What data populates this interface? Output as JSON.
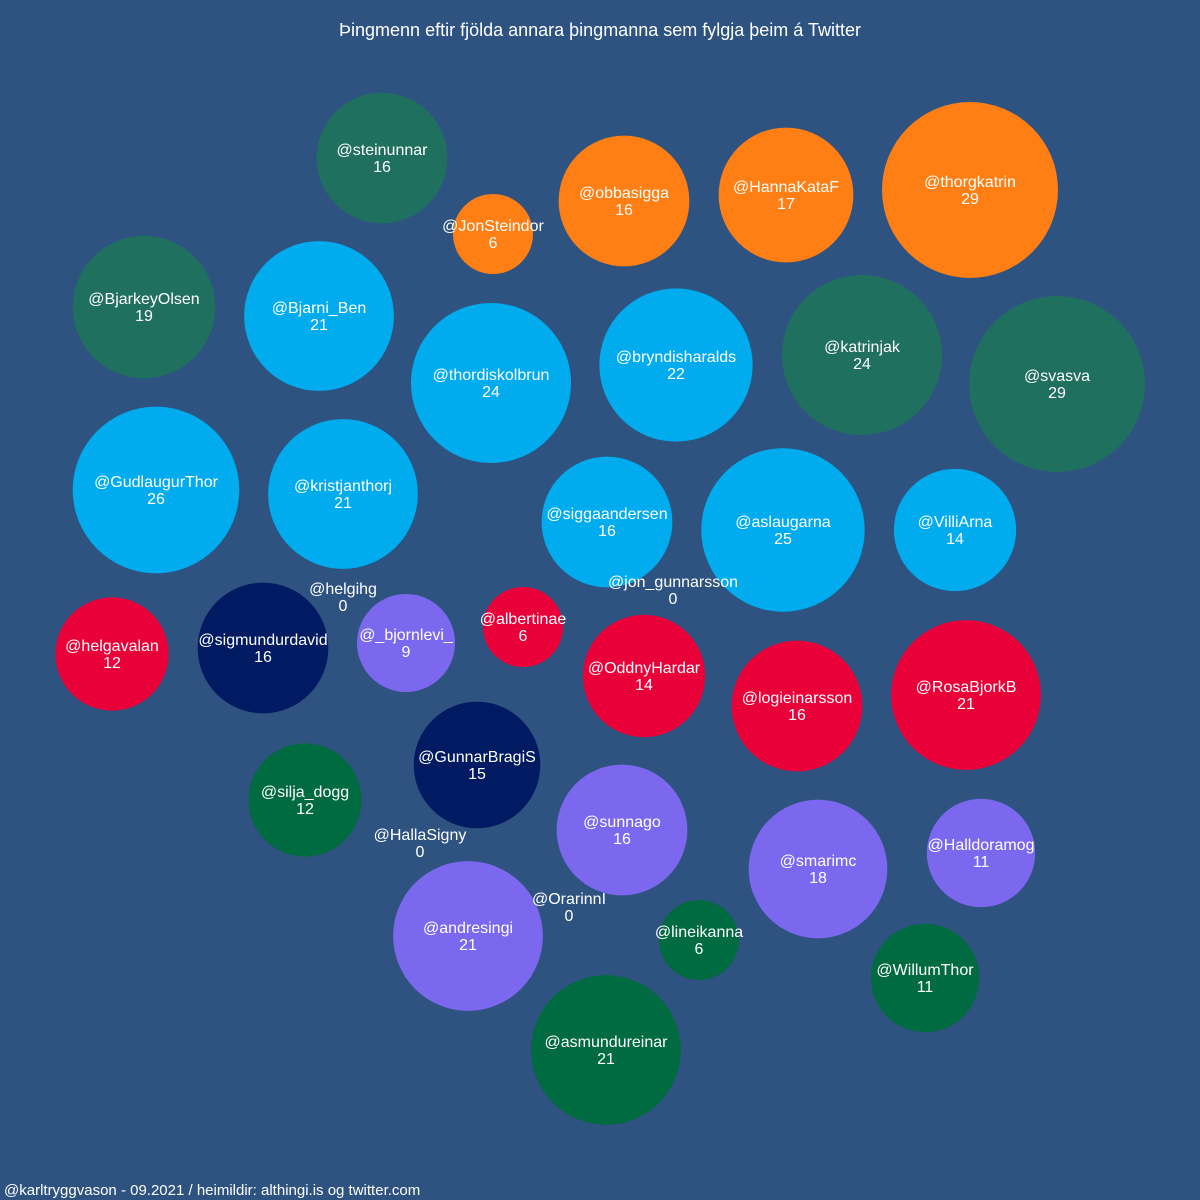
{
  "chart_data": {
    "type": "bubble",
    "title": "Þingmenn eftir fjölda annara þingmanna sem fylgja þeim á Twitter",
    "footer": "@karltryggvason - 09.2021 / heimildir: althingi.is og twitter.com",
    "background": "#2e5381",
    "colors": {
      "orange": "#ff7f14",
      "teal": "#207060",
      "lightblue": "#00acee",
      "red": "#ea0038",
      "navy": "#001b62",
      "purple": "#7b68ee",
      "green": "#006a40"
    },
    "points": [
      {
        "handle": "@steinunnar",
        "value": 16,
        "color": "teal"
      },
      {
        "handle": "@JonSteindor",
        "value": 6,
        "color": "orange"
      },
      {
        "handle": "@obbasigga",
        "value": 16,
        "color": "orange"
      },
      {
        "handle": "@HannaKataF",
        "value": 17,
        "color": "orange"
      },
      {
        "handle": "@thorgkatrin",
        "value": 29,
        "color": "orange"
      },
      {
        "handle": "@BjarkeyOlsen",
        "value": 19,
        "color": "teal"
      },
      {
        "handle": "@Bjarni_Ben",
        "value": 21,
        "color": "lightblue"
      },
      {
        "handle": "@thordiskolbrun",
        "value": 24,
        "color": "lightblue"
      },
      {
        "handle": "@bryndisharalds",
        "value": 22,
        "color": "lightblue"
      },
      {
        "handle": "@katrinjak",
        "value": 24,
        "color": "teal"
      },
      {
        "handle": "@svasva",
        "value": 29,
        "color": "teal"
      },
      {
        "handle": "@GudlaugurThor",
        "value": 26,
        "color": "lightblue"
      },
      {
        "handle": "@kristjanthorj",
        "value": 21,
        "color": "lightblue"
      },
      {
        "handle": "@siggaandersen",
        "value": 16,
        "color": "lightblue"
      },
      {
        "handle": "@aslaugarna",
        "value": 25,
        "color": "lightblue"
      },
      {
        "handle": "@VilliArna",
        "value": 14,
        "color": "lightblue"
      },
      {
        "handle": "@helgihg",
        "value": 0,
        "color": "purple"
      },
      {
        "handle": "@jon_gunnarsson",
        "value": 0,
        "color": "lightblue"
      },
      {
        "handle": "@helgavalan",
        "value": 12,
        "color": "red"
      },
      {
        "handle": "@sigmundurdavid",
        "value": 16,
        "color": "navy"
      },
      {
        "handle": "@_bjornlevi_",
        "value": 9,
        "color": "purple"
      },
      {
        "handle": "@albertinae",
        "value": 6,
        "color": "red"
      },
      {
        "handle": "@OddnyHardar",
        "value": 14,
        "color": "red"
      },
      {
        "handle": "@logieinarsson",
        "value": 16,
        "color": "red"
      },
      {
        "handle": "@RosaBjorkB",
        "value": 21,
        "color": "red"
      },
      {
        "handle": "@GunnarBragiS",
        "value": 15,
        "color": "navy"
      },
      {
        "handle": "@silja_dogg",
        "value": 12,
        "color": "green"
      },
      {
        "handle": "@HallaSigny",
        "value": 0,
        "color": "green"
      },
      {
        "handle": "@sunnago",
        "value": 16,
        "color": "purple"
      },
      {
        "handle": "@smarimc",
        "value": 18,
        "color": "purple"
      },
      {
        "handle": "@Halldoramog",
        "value": 11,
        "color": "purple"
      },
      {
        "handle": "@andresingi",
        "value": 21,
        "color": "purple"
      },
      {
        "handle": "@OrarinnI",
        "value": 0,
        "color": "green"
      },
      {
        "handle": "@lineikanna",
        "value": 6,
        "color": "green"
      },
      {
        "handle": "@WillumThor",
        "value": 11,
        "color": "green"
      },
      {
        "handle": "@asmundureinar",
        "value": 21,
        "color": "green"
      }
    ]
  }
}
